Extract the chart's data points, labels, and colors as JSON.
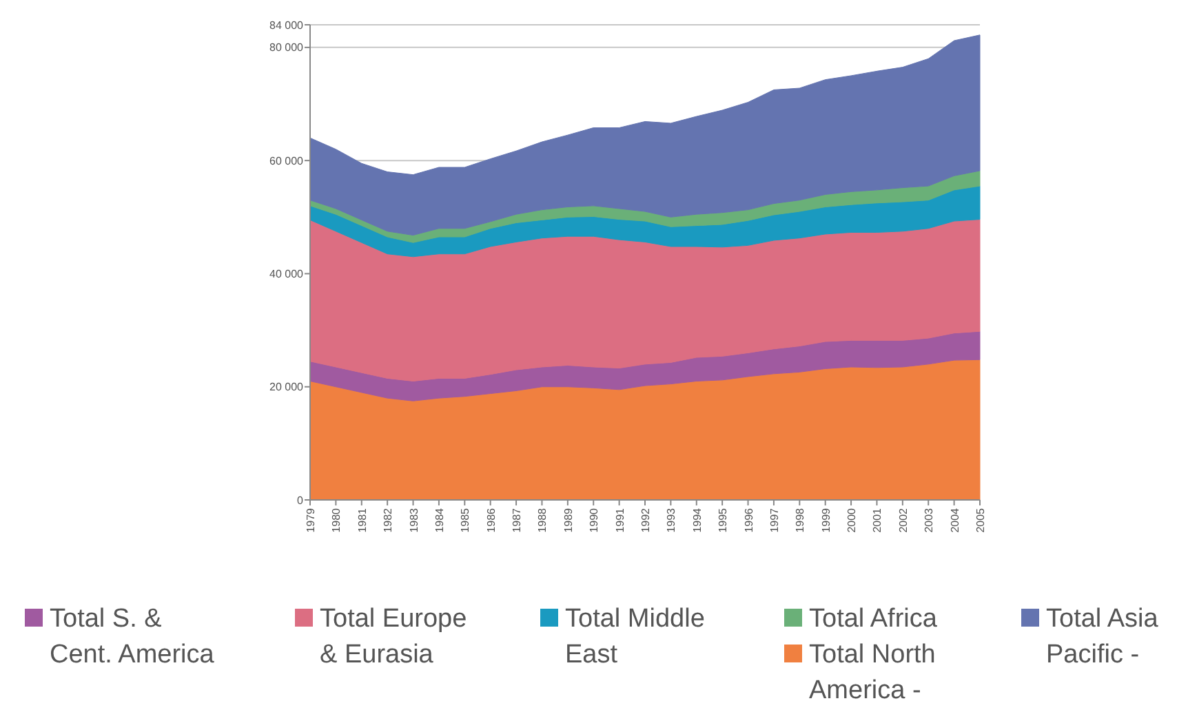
{
  "chart_data": {
    "type": "area",
    "stacked": true,
    "categories": [
      "1979",
      "1980",
      "1981",
      "1982",
      "1983",
      "1984",
      "1985",
      "1986",
      "1987",
      "1988",
      "1989",
      "1990",
      "1991",
      "1992",
      "1993",
      "1994",
      "1995",
      "1996",
      "1997",
      "1998",
      "1999",
      "2000",
      "2001",
      "2002",
      "2003",
      "2004",
      "2005"
    ],
    "series": [
      {
        "name": "Total North America -",
        "color": "#f08040",
        "values": [
          21000,
          20000,
          19000,
          18000,
          17500,
          18000,
          18300,
          18800,
          19300,
          20000,
          20000,
          19800,
          19500,
          20200,
          20500,
          21000,
          21200,
          21800,
          22300,
          22600,
          23200,
          23500,
          23400,
          23500,
          24000,
          24700,
          24800
        ]
      },
      {
        "name": "Total S. & Cent. America",
        "color": "#a05aa0",
        "values": [
          3500,
          3500,
          3500,
          3500,
          3500,
          3500,
          3200,
          3400,
          3700,
          3500,
          3800,
          3700,
          3800,
          3800,
          3800,
          4200,
          4200,
          4200,
          4400,
          4600,
          4800,
          4700,
          4800,
          4700,
          4600,
          4800,
          5000
        ]
      },
      {
        "name": "Total Europe & Eurasia",
        "color": "#dc6e82",
        "values": [
          25000,
          24000,
          23000,
          22000,
          22000,
          22000,
          22000,
          22600,
          22600,
          22800,
          22800,
          23100,
          22700,
          21600,
          20500,
          19600,
          19300,
          19000,
          19200,
          19100,
          19000,
          19100,
          19100,
          19300,
          19400,
          19800,
          19800
        ]
      },
      {
        "name": "Total Middle East",
        "color": "#1a9ac0",
        "values": [
          2500,
          3000,
          3000,
          3000,
          2500,
          3000,
          3000,
          3200,
          3400,
          3200,
          3400,
          3500,
          3600,
          3700,
          3500,
          3700,
          4000,
          4400,
          4500,
          4700,
          4800,
          4900,
          5200,
          5200,
          5000,
          5500,
          5900
        ]
      },
      {
        "name": "Total Africa",
        "color": "#6ab078",
        "values": [
          1000,
          1000,
          1000,
          1000,
          1300,
          1500,
          1500,
          1200,
          1500,
          1800,
          1800,
          1900,
          1900,
          1700,
          1700,
          2000,
          2100,
          1900,
          2000,
          2000,
          2200,
          2300,
          2300,
          2500,
          2500,
          2500,
          2700
        ]
      },
      {
        "name": "Total Asia Pacific -",
        "color": "#6474b0",
        "values": [
          11000,
          10500,
          10000,
          10500,
          10700,
          10800,
          10800,
          11100,
          11200,
          12000,
          12700,
          13800,
          14300,
          15900,
          16600,
          17300,
          18100,
          19000,
          20100,
          19800,
          20300,
          20500,
          21000,
          21300,
          22500,
          23900,
          24000
        ]
      }
    ],
    "ylim": [
      0,
      84000
    ],
    "yticks": [
      0,
      {
        "value": 20000,
        "label": "20 000"
      },
      {
        "value": 40000,
        "label": "40 000"
      },
      {
        "value": 60000,
        "label": "60 000"
      },
      {
        "value": 80000,
        "label": "80 000"
      },
      {
        "value": 84000,
        "label": "84 000"
      }
    ],
    "grid": "y",
    "legend": "bottom"
  }
}
